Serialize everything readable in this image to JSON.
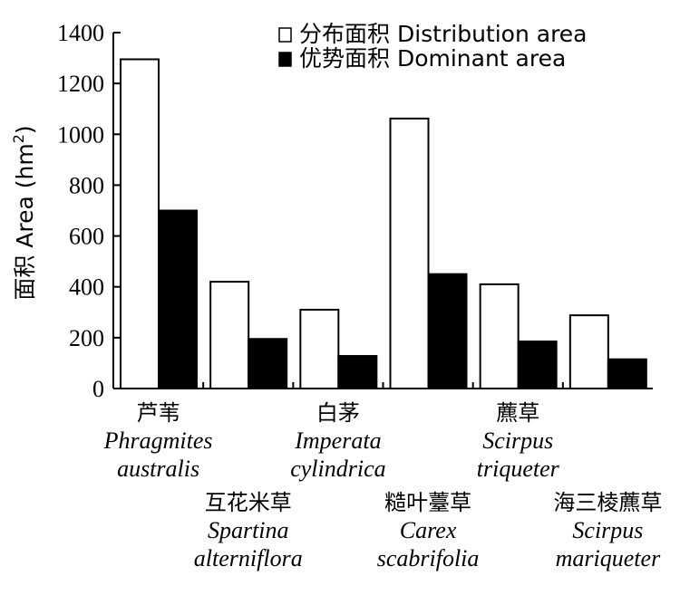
{
  "chart_data": {
    "type": "bar",
    "categories": [
      {
        "cn": "芦苇",
        "latin": [
          "Phragmites",
          "australis"
        ]
      },
      {
        "cn": "互花米草",
        "latin": [
          "Spartina",
          "alterniflora"
        ]
      },
      {
        "cn": "白茅",
        "latin": [
          "Imperata",
          "cylindrica"
        ]
      },
      {
        "cn": "糙叶薹草",
        "latin": [
          "Carex",
          "scabrifolia"
        ]
      },
      {
        "cn": "藨草",
        "latin": [
          "Scirpus",
          "triqueter"
        ]
      },
      {
        "cn": "海三棱藨草",
        "latin": [
          "Scirpus",
          "mariqueter"
        ]
      }
    ],
    "series": [
      {
        "name": "分布面积 Distribution area",
        "values": [
          1295,
          420,
          310,
          1062,
          410,
          288
        ],
        "color": "#ffffff"
      },
      {
        "name": "优势面积 Dominant area",
        "values": [
          700,
          195,
          128,
          450,
          185,
          115
        ],
        "color": "#000000"
      }
    ],
    "ylabel": "面积 Area (hm²)",
    "ylabel_parts": {
      "main": "面积 Area (hm",
      "sup": "2",
      "end": ")"
    },
    "ylim": [
      0,
      1400
    ],
    "yticks": [
      "0",
      "200",
      "400",
      "600",
      "800",
      "1000",
      "1200",
      "1400"
    ],
    "legend_position": "top-right",
    "grid": false
  }
}
